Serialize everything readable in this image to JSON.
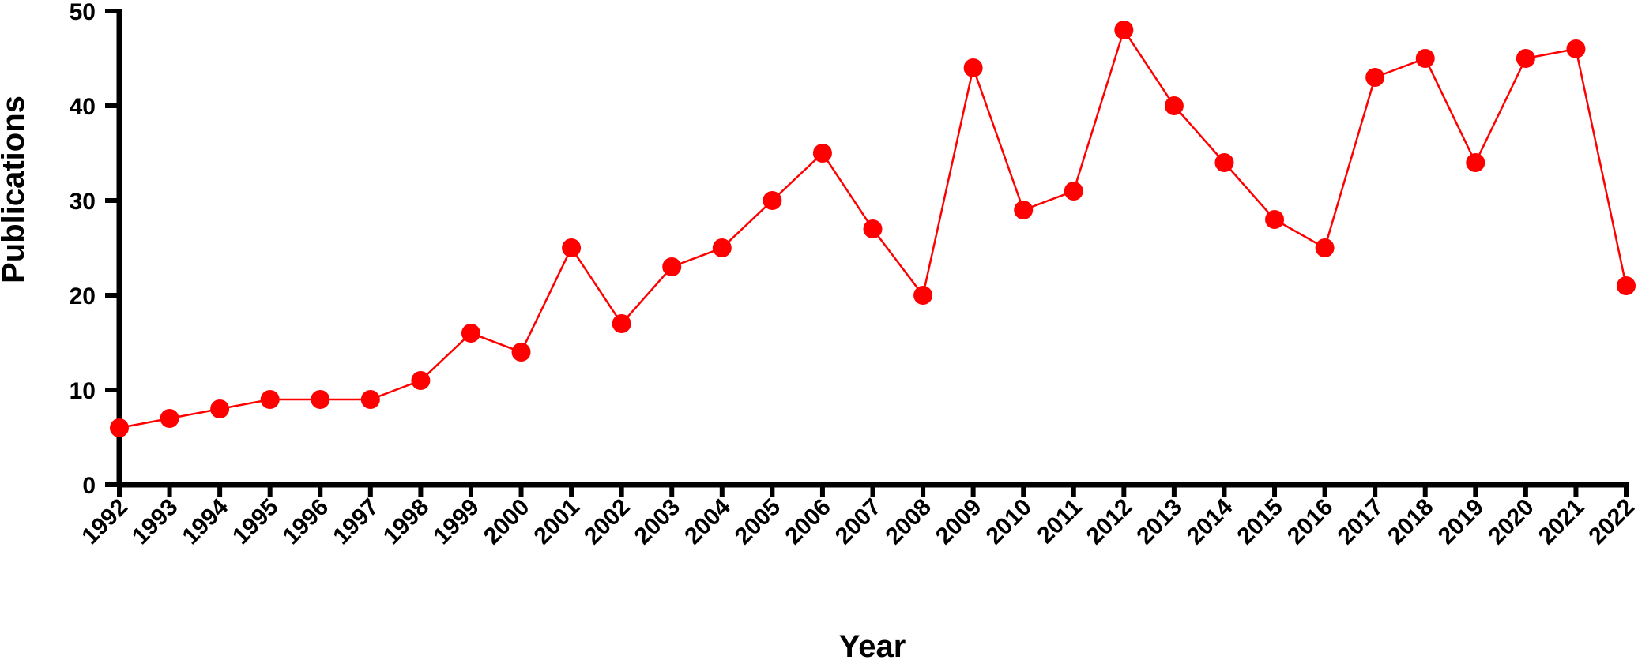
{
  "chart_data": {
    "type": "line",
    "title": "",
    "xlabel": "Year",
    "ylabel": "Publications",
    "ylim": [
      0,
      50
    ],
    "yticks": [
      0,
      10,
      20,
      30,
      40,
      50
    ],
    "grid": false,
    "legend": "none",
    "color": "#ff0000",
    "categories": [
      "1992",
      "1993",
      "1994",
      "1995",
      "1996",
      "1997",
      "1998",
      "1999",
      "2000",
      "2001",
      "2002",
      "2003",
      "2004",
      "2005",
      "2006",
      "2007",
      "2008",
      "2009",
      "2010",
      "2011",
      "2012",
      "2013",
      "2014",
      "2015",
      "2016",
      "2017",
      "2018",
      "2019",
      "2020",
      "2021",
      "2022"
    ],
    "values": [
      6,
      7,
      8,
      9,
      9,
      9,
      11,
      16,
      14,
      25,
      17,
      23,
      25,
      30,
      35,
      27,
      20,
      44,
      29,
      31,
      48,
      40,
      34,
      28,
      25,
      43,
      45,
      34,
      45,
      46,
      21
    ]
  }
}
